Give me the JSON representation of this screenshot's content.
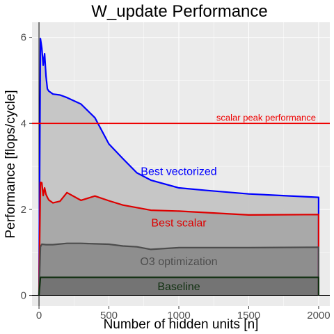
{
  "chart_data": {
    "type": "area",
    "title": "W_update Performance",
    "xlabel": "Number of hidden units [n]",
    "ylabel": "Performance [flops/cycle]",
    "xlim": [
      -50,
      2080
    ],
    "ylim": [
      -0.25,
      6.35
    ],
    "x_ticks": [
      0,
      500,
      1000,
      1500,
      2000
    ],
    "y_ticks": [
      0,
      2,
      4,
      6
    ],
    "grid": true,
    "background": "#ebebeb",
    "series": [
      {
        "name": "Best vectorized",
        "color": "#0000ff",
        "fill": "#c4c4c4",
        "x": [
          0,
          10,
          20,
          30,
          40,
          50,
          60,
          70,
          100,
          150,
          200,
          300,
          400,
          500,
          600,
          700,
          800,
          1000,
          1200,
          1500,
          2000
        ],
        "y": [
          0.0,
          5.97,
          5.75,
          5.35,
          5.62,
          5.1,
          4.8,
          4.75,
          4.68,
          4.66,
          4.6,
          4.45,
          4.13,
          3.52,
          3.18,
          2.85,
          2.68,
          2.5,
          2.44,
          2.36,
          2.28
        ]
      },
      {
        "name": "Best scalar",
        "color": "#dd0000",
        "fill": "#a8a8a8",
        "x": [
          0,
          10,
          20,
          30,
          40,
          50,
          60,
          70,
          100,
          150,
          200,
          300,
          400,
          500,
          600,
          800,
          1000,
          1500,
          2000
        ],
        "y": [
          0.0,
          2.63,
          2.62,
          2.32,
          2.5,
          2.35,
          2.28,
          2.22,
          2.15,
          2.19,
          2.39,
          2.21,
          2.31,
          2.2,
          2.1,
          1.98,
          1.96,
          1.87,
          1.88
        ]
      },
      {
        "name": "O3 optimization",
        "color": "#4d4d4d",
        "fill": "#8c8c8c",
        "x": [
          0,
          10,
          20,
          50,
          100,
          200,
          300,
          400,
          500,
          600,
          700,
          800,
          1000,
          1500,
          2000
        ],
        "y": [
          0.0,
          1.13,
          1.19,
          1.18,
          1.18,
          1.21,
          1.21,
          1.2,
          1.19,
          1.15,
          1.13,
          1.07,
          1.11,
          1.11,
          1.12
        ]
      },
      {
        "name": "Baseline",
        "color": "#0f2f0f",
        "fill": "#737373",
        "x": [
          0,
          10,
          50,
          100,
          500,
          1000,
          1500,
          2000
        ],
        "y": [
          0.0,
          0.42,
          0.42,
          0.42,
          0.42,
          0.42,
          0.42,
          0.42
        ]
      }
    ],
    "reference_lines": [
      {
        "label": "scalar peak performance",
        "y": 4.0,
        "color": "#ee0000"
      }
    ]
  }
}
